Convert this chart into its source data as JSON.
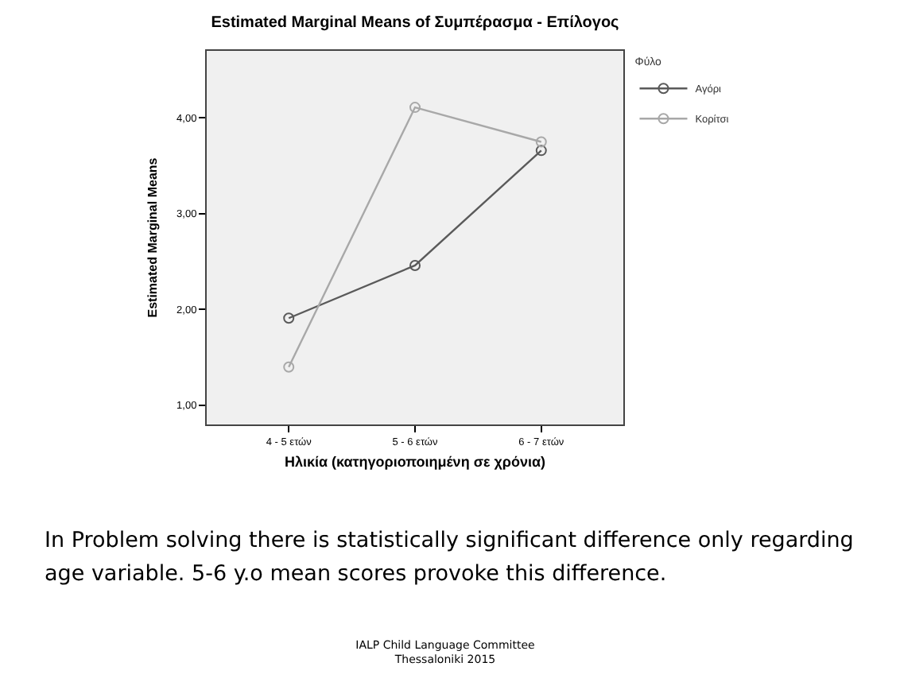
{
  "chart_data": {
    "type": "line",
    "title": "Estimated Marginal Means of Συμπέρασμα - Επίλογος",
    "xlabel": "Ηλικία (κατηγοριοποιημένη σε χρόνια)",
    "ylabel": "Estimated Marginal Means",
    "legend_title": "Φύλο",
    "categories": [
      "4 - 5 ετών",
      "5 - 6 ετών",
      "6 - 7 ετών"
    ],
    "series": [
      {
        "name": "Αγόρι",
        "color": "#5a5a5a",
        "values": [
          1.91,
          2.46,
          3.66
        ]
      },
      {
        "name": "Κορίτσι",
        "color": "#a8a8a8",
        "values": [
          1.4,
          4.11,
          3.75
        ]
      }
    ],
    "ylim": [
      0.8,
      4.7
    ],
    "yticks": [
      {
        "value": 1,
        "label": "1,00"
      },
      {
        "value": 2,
        "label": "2,00"
      },
      {
        "value": 3,
        "label": "3,00"
      },
      {
        "value": 4,
        "label": "4,00"
      }
    ],
    "grid": false,
    "legend": "top right",
    "marker": "circle",
    "line_style": "solid",
    "annotations": [
      "In Problem solving there is statistically significant difference only regarding age variable. 5-6 y.o mean scores provoke this difference.",
      "IALP Child Language Committee\nThessaloniki 2015"
    ]
  }
}
